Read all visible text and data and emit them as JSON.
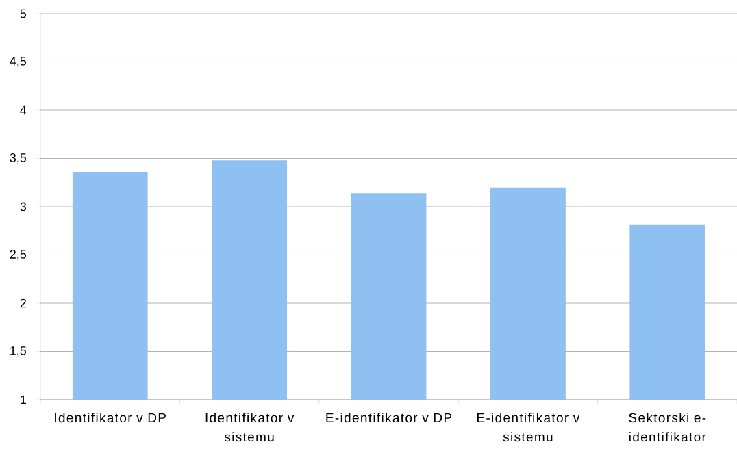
{
  "chart_data": {
    "type": "bar",
    "categories": [
      "Identifikator v DP",
      "Identifikator v sistemu",
      "E-identifikator v DP",
      "E-identifikator v sistemu",
      "Sektorski e-identifikator"
    ],
    "values": [
      3.36,
      3.48,
      3.14,
      3.2,
      2.81
    ],
    "color": "#8fc0f2",
    "ylim": [
      1,
      5
    ],
    "yticks": [
      1,
      {
        "value": 1.5,
        "label": "1,5"
      },
      2,
      {
        "value": 2.5,
        "label": "2,5"
      },
      3,
      {
        "value": 3.5,
        "label": "3,5"
      },
      4,
      {
        "value": 4.5,
        "label": "4,5"
      },
      5
    ],
    "grid": "y"
  }
}
